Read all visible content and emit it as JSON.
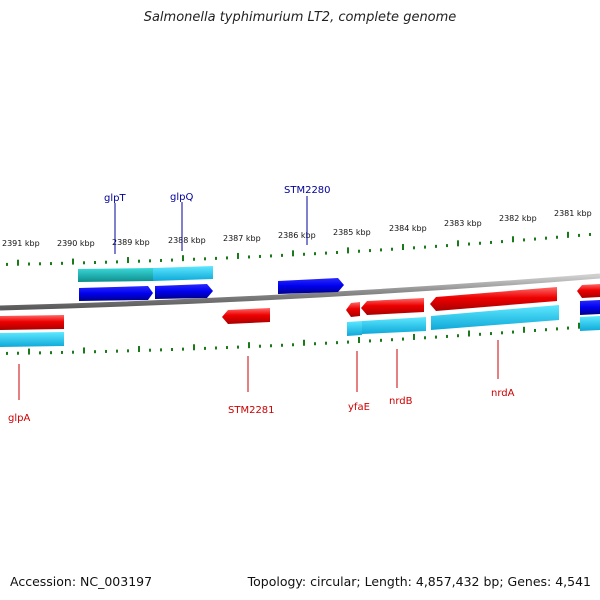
{
  "title": "Salmonella typhimurium LT2, complete genome",
  "footer": {
    "accession": "Accession: NC_003197",
    "summary": "Topology: circular; Length: 4,857,432 bp; Genes: 4,541"
  },
  "colors": {
    "backbone": "#8a8a8a",
    "ticks": "#1a7a1a",
    "forward_gene": "#0000ee",
    "forward_label": "#00009a",
    "forward_cds": "#1ec8c8",
    "reverse_gene": "#ee0000",
    "reverse_label": "#cc0000",
    "reverse_cds": "#1ec8f0"
  },
  "scale_labels": [
    "2391 kbp",
    "2390 kbp",
    "2389 kbp",
    "2388 kbp",
    "2387 kbp",
    "2386 kbp",
    "2385 kbp",
    "2384 kbp",
    "2383 kbp",
    "2382 kbp",
    "2381 kbp"
  ],
  "forward_genes": [
    "glpT",
    "glpQ",
    "STM2280"
  ],
  "reverse_genes": [
    "glpA",
    "STM2281",
    "yfaE",
    "nrdB",
    "nrdA"
  ]
}
